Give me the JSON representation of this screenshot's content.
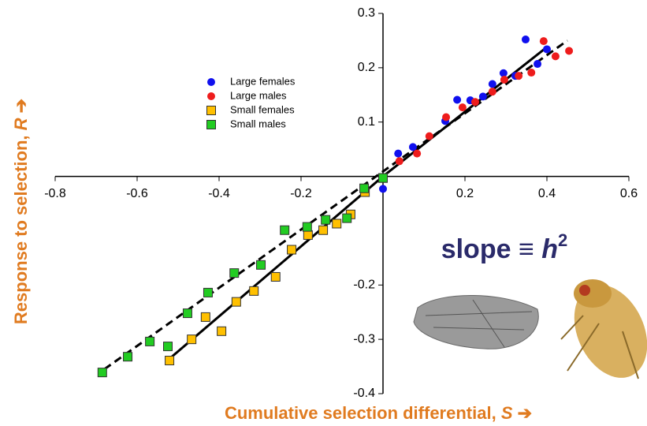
{
  "chart_data": {
    "type": "scatter",
    "xlabel": "Cumulative selection differential,",
    "xlabel_symbol": "S",
    "ylabel": "Response to selection,",
    "ylabel_symbol": "R",
    "annotation": "slope ≡",
    "annotation_symbol": "h",
    "annotation_sup": "2",
    "xlim": [
      -0.8,
      0.6
    ],
    "ylim": [
      -0.4,
      0.3
    ],
    "xticks": [
      -0.8,
      -0.6,
      -0.4,
      -0.2,
      0.2,
      0.4,
      0.6
    ],
    "yticks": [
      0.3,
      0.2,
      0.1,
      -0.2,
      -0.3,
      -0.4
    ],
    "series": [
      {
        "name": "Large females",
        "color": "#1010ee",
        "marker": "circle",
        "x": [
          0,
          0.037,
          0.073,
          0.152,
          0.181,
          0.213,
          0.244,
          0.267,
          0.294,
          0.323,
          0.348,
          0.377,
          0.4
        ],
        "values": [
          -0.023,
          0.042,
          0.054,
          0.102,
          0.141,
          0.14,
          0.147,
          0.17,
          0.19,
          0.185,
          0.252,
          0.207,
          0.234
        ]
      },
      {
        "name": "Large males",
        "color": "#ee1c1c",
        "marker": "circle",
        "x": [
          0.04,
          0.083,
          0.113,
          0.154,
          0.194,
          0.225,
          0.267,
          0.296,
          0.331,
          0.362,
          0.392,
          0.421,
          0.454
        ],
        "values": [
          0.028,
          0.042,
          0.074,
          0.109,
          0.127,
          0.137,
          0.156,
          0.178,
          0.185,
          0.191,
          0.249,
          0.221,
          0.231
        ]
      },
      {
        "name": "Small females",
        "color": "#ffc000",
        "marker": "square",
        "x": [
          -0.521,
          -0.467,
          -0.433,
          -0.394,
          -0.358,
          -0.315,
          -0.262,
          -0.223,
          -0.183,
          -0.146,
          -0.113,
          -0.079,
          -0.044,
          0
        ],
        "values": [
          -0.339,
          -0.3,
          -0.259,
          -0.285,
          -0.231,
          -0.211,
          -0.185,
          -0.135,
          -0.108,
          -0.099,
          -0.087,
          -0.07,
          -0.029,
          -0.003
        ]
      },
      {
        "name": "Small males",
        "color": "#22cc22",
        "marker": "square",
        "x": [
          -0.685,
          -0.623,
          -0.569,
          -0.525,
          -0.477,
          -0.427,
          -0.363,
          -0.298,
          -0.24,
          -0.185,
          -0.14,
          -0.088,
          -0.046,
          0
        ],
        "values": [
          -0.361,
          -0.332,
          -0.304,
          -0.313,
          -0.252,
          -0.214,
          -0.178,
          -0.163,
          -0.099,
          -0.093,
          -0.08,
          -0.077,
          -0.022,
          -0.003
        ]
      }
    ],
    "fit_lines": [
      {
        "x": [
          0,
          0.4
        ],
        "y": [
          0,
          0.238
        ],
        "dashed": false
      },
      {
        "x": [
          -0.52,
          0
        ],
        "y": [
          -0.335,
          0
        ],
        "dashed": false
      },
      {
        "x": [
          -0.68,
          0.45
        ],
        "y": [
          -0.355,
          0.25
        ],
        "dashed": true
      }
    ]
  }
}
